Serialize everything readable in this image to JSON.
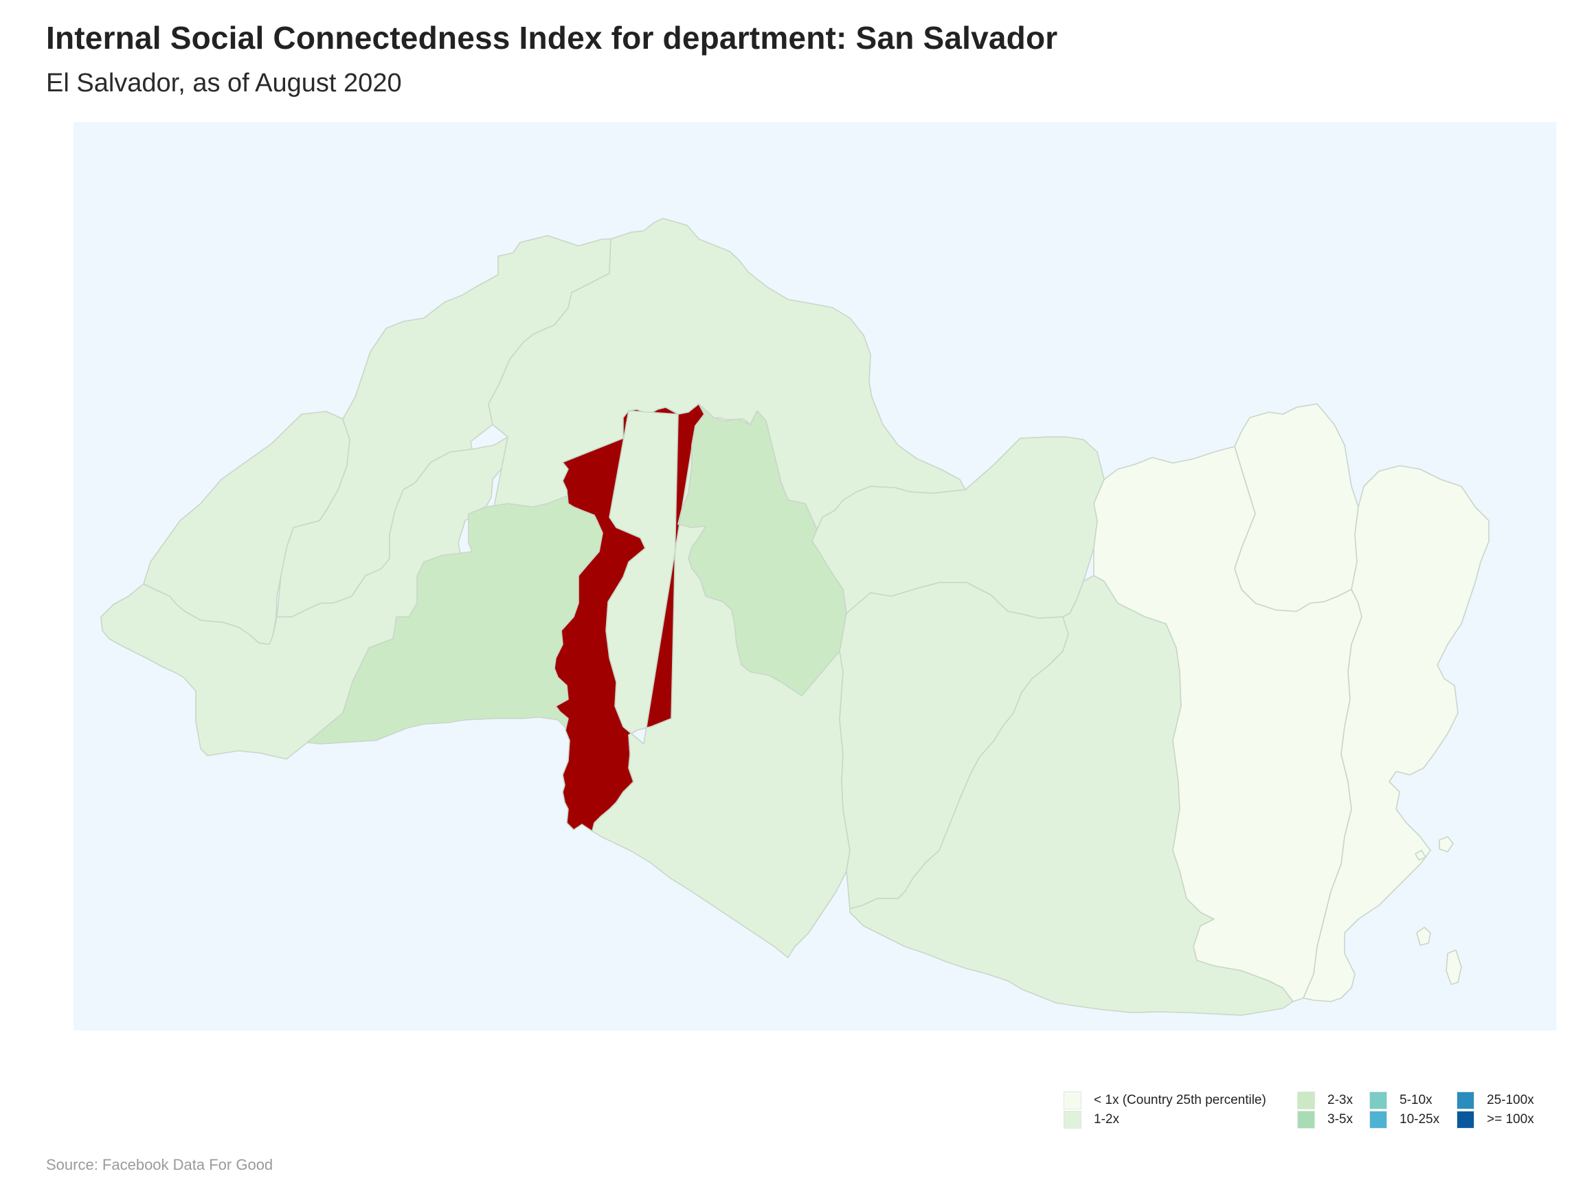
{
  "header": {
    "title": "Internal Social Connectedness Index for department: San Salvador",
    "subtitle": "El Salvador, as of August 2020"
  },
  "map": {
    "country": "El Salvador",
    "selected_region": "San Salvador",
    "colors": {
      "background": "#eef6fe",
      "selected": "#a10000",
      "lt1": "#f5fbef",
      "1to2": "#e0f2db",
      "2to3": "#cce9c5",
      "3to5": "#a8dcb5",
      "5to10": "#7accc4",
      "10to25": "#4eb3d3",
      "25to100": "#2b8cbe",
      "gte100": "#08589e",
      "border": "#c9d6c9"
    },
    "regions": [
      {
        "id": "ahuachapan",
        "bin": "1-2x"
      },
      {
        "id": "santa-ana",
        "bin": "1-2x"
      },
      {
        "id": "sonsonate",
        "bin": "1-2x"
      },
      {
        "id": "chalatenango",
        "bin": "1-2x"
      },
      {
        "id": "la-libertad",
        "bin": "2-3x"
      },
      {
        "id": "san-salvador",
        "bin": "selected"
      },
      {
        "id": "cuscatlan",
        "bin": "2-3x"
      },
      {
        "id": "cabanas",
        "bin": "1-2x"
      },
      {
        "id": "la-paz",
        "bin": "1-2x"
      },
      {
        "id": "san-vicente",
        "bin": "1-2x"
      },
      {
        "id": "usulutan",
        "bin": "1-2x"
      },
      {
        "id": "san-miguel",
        "bin": "< 1x"
      },
      {
        "id": "morazan",
        "bin": "< 1x"
      },
      {
        "id": "la-union",
        "bin": "< 1x"
      }
    ]
  },
  "legend": {
    "items": [
      {
        "label": "< 1x (Country 25th percentile)",
        "color": "#f5fbef"
      },
      {
        "label": "1-2x",
        "color": "#e0f2db"
      },
      {
        "label": "2-3x",
        "color": "#cce9c5"
      },
      {
        "label": "3-5x",
        "color": "#a8dcb5"
      },
      {
        "label": "5-10x",
        "color": "#7accc4"
      },
      {
        "label": "10-25x",
        "color": "#4eb3d3"
      },
      {
        "label": "25-100x",
        "color": "#2b8cbe"
      },
      {
        "label": ">= 100x",
        "color": "#08589e"
      }
    ]
  },
  "footer": {
    "source": "Source: Facebook Data For Good"
  }
}
